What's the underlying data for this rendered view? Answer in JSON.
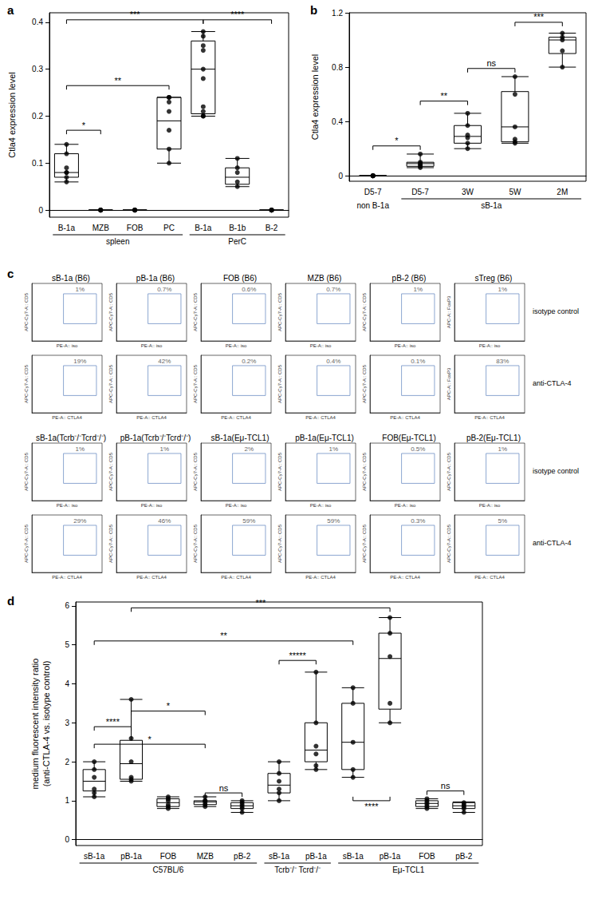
{
  "chart_data": [
    {
      "type": "boxplot",
      "panel_label": "a",
      "y_label": "Ctla4 expression level",
      "color": "#000000",
      "grid": false,
      "categories": [
        "B-1a",
        "MZB",
        "FOB",
        "PC",
        "B-1a",
        "B-1b",
        "B-2"
      ],
      "groups": [
        {
          "label": "spleen",
          "from": 0,
          "to": 3
        },
        {
          "label": "PerC",
          "from": 4,
          "to": 6
        }
      ],
      "boxes": [
        [
          0.06,
          0.07,
          0.08,
          0.12,
          0.14
        ],
        [
          0,
          0,
          0,
          0,
          0
        ],
        [
          0,
          0,
          0,
          0,
          0
        ],
        [
          0.1,
          0.13,
          0.19,
          0.24,
          0.24
        ],
        [
          0.2,
          0.205,
          0.3,
          0.36,
          0.38
        ],
        [
          0.05,
          0.055,
          0.07,
          0.09,
          0.11
        ],
        [
          0,
          0,
          0,
          0,
          0
        ]
      ],
      "points": [
        [
          0.06,
          0.07,
          0.08,
          0.08,
          0.09,
          0.12,
          0.14
        ],
        [
          0,
          0,
          0,
          0,
          0
        ],
        [
          0,
          0,
          0,
          0,
          0
        ],
        [
          0.1,
          0.13,
          0.17,
          0.21,
          0.23,
          0.24,
          0.24
        ],
        [
          0.2,
          0.2,
          0.21,
          0.22,
          0.28,
          0.3,
          0.34,
          0.35,
          0.37,
          0.38
        ],
        [
          0.05,
          0.06,
          0.08,
          0.09,
          0.11
        ],
        [
          0,
          0,
          0,
          0,
          0
        ]
      ],
      "brackets": [
        {
          "from": 0,
          "to": 1,
          "y": 0.17,
          "label": "*"
        },
        {
          "from": 0,
          "to": 3,
          "y": 0.265,
          "label": "**"
        },
        {
          "from": 0,
          "to": 4,
          "y": 0.405,
          "label": "***"
        },
        {
          "from": 4,
          "to": 6,
          "y": 0.405,
          "label": "****"
        }
      ],
      "ylim": [
        -0.015,
        0.42
      ],
      "yticks": [
        0,
        0.1,
        0.2,
        0.3,
        0.4
      ]
    },
    {
      "type": "boxplot",
      "panel_label": "b",
      "y_label": "Ctla4 expression level",
      "color": "#000000",
      "grid": false,
      "categories": [
        "D5-7",
        "D5-7",
        "3W",
        "5W",
        "2M"
      ],
      "groups": [
        {
          "label": "non B-1a",
          "from": 0,
          "to": 0
        },
        {
          "label": "sB-1a",
          "from": 1,
          "to": 4
        }
      ],
      "boxes": [
        [
          0,
          0,
          0,
          0,
          0
        ],
        [
          0.06,
          0.07,
          0.09,
          0.1,
          0.16
        ],
        [
          0.2,
          0.24,
          0.29,
          0.37,
          0.46
        ],
        [
          0.24,
          0.25,
          0.36,
          0.62,
          0.73
        ],
        [
          0.8,
          0.9,
          1.0,
          1.02,
          1.05
        ]
      ],
      "points": [
        [
          0,
          0,
          0,
          0,
          0,
          0
        ],
        [
          0.06,
          0.07,
          0.08,
          0.09,
          0.1,
          0.16
        ],
        [
          0.2,
          0.24,
          0.28,
          0.3,
          0.37,
          0.46
        ],
        [
          0.24,
          0.25,
          0.27,
          0.36,
          0.6,
          0.73
        ],
        [
          0.8,
          0.92,
          1.0,
          1.02,
          1.05
        ]
      ],
      "brackets": [
        {
          "from": 0,
          "to": 1,
          "y": 0.22,
          "label": "*"
        },
        {
          "from": 1,
          "to": 2,
          "y": 0.55,
          "label": "**"
        },
        {
          "from": 2,
          "to": 3,
          "y": 0.79,
          "label": "ns"
        },
        {
          "from": 3,
          "to": 4,
          "y": 1.13,
          "label": "***"
        }
      ],
      "ylim": [
        -0.04,
        1.2
      ],
      "yticks": [
        0,
        0.4,
        0.8,
        1.2
      ]
    },
    {
      "type": "flow",
      "panel_label": "c",
      "xlim": [
        0,
        1
      ],
      "ylim": [
        0,
        1
      ],
      "tick_labels": false,
      "gate": [
        0.45,
        0.3,
        0.92,
        0.82
      ],
      "blocks": [
        {
          "titles": [
            "sB-1a (B6)",
            "pB-1a (B6)",
            "FOB (B6)",
            "MZB (B6)",
            "pB-2 (B6)",
            "sTreg (B6)"
          ],
          "y_labels": [
            "APC-Cy7-A:: CD5",
            "APC-Cy7-A:: CD5",
            "APC-Cy7-A:: CD5",
            "APC-Cy7-A:: CD5",
            "APC-Cy7-A:: CD5",
            "APC-A:: FoxP3"
          ],
          "rows": [
            {
              "label": "isotype control",
              "x_label": "PE-A:: iso",
              "values": [
                1,
                0.7,
                0.6,
                0.7,
                1,
                1
              ],
              "value_labels": [
                "1%",
                "0.7%",
                "0.6%",
                "0.7%",
                "1%",
                "1%"
              ]
            },
            {
              "label": "anti-CTLA-4",
              "x_label": "PE-A:: CTLA4",
              "values": [
                19,
                42,
                0.2,
                0.4,
                0.1,
                83
              ],
              "value_labels": [
                "19%",
                "42%",
                "0.2%",
                "0.4%",
                "0.1%",
                "83%"
              ]
            }
          ]
        },
        {
          "titles": [
            "sB-1a(Tcrb⁻/⁻Tcrd⁻/⁻)",
            "pB-1a(Tcrb⁻/⁻Tcrd⁻/⁻)",
            "sB-1a(Eμ-TCL1)",
            "pB-1a(Eμ-TCL1)",
            "FOB(Eμ-TCL1)",
            "pB-2(Eμ-TCL1)"
          ],
          "y_labels": [
            "APC-Cy7-A:: CD5",
            "APC-Cy7-A:: CD5",
            "APC-Cy7-A:: CD5",
            "APC-Cy7-A:: CD5",
            "APC-Cy7-A:: CD5",
            "APC-Cy7-A:: CD5"
          ],
          "rows": [
            {
              "label": "isotype control",
              "x_label": "PE-A:: iso",
              "values": [
                1,
                1,
                2,
                1,
                0.5,
                1
              ],
              "value_labels": [
                "1%",
                "1%",
                "2%",
                "1%",
                "0.5%",
                "1%"
              ]
            },
            {
              "label": "anti-CTLA-4",
              "x_label": "PE-A:: CTLA4",
              "values": [
                29,
                46,
                59,
                59,
                0.3,
                5
              ],
              "value_labels": [
                "29%",
                "46%",
                "59%",
                "59%",
                "0.3%",
                "5%"
              ]
            }
          ]
        }
      ]
    },
    {
      "type": "boxplot",
      "panel_label": "d",
      "y_label": "medium fluorescent intensity ratio\n(anti-CTLA-4 vs. isotype control)",
      "color": "#000000",
      "grid": false,
      "categories": [
        "sB-1a",
        "pB-1a",
        "FOB",
        "MZB",
        "pB-2",
        "sB-1a",
        "pB-1a",
        "sB-1a",
        "pB-1a",
        "FOB",
        "pB-2"
      ],
      "groups": [
        {
          "label": "C57BL/6",
          "from": 0,
          "to": 4
        },
        {
          "label": "Tcrb⁻/⁻ Tcrd⁻/⁻",
          "from": 5,
          "to": 6
        },
        {
          "label": "Eμ-TCL1",
          "from": 7,
          "to": 10
        }
      ],
      "boxes": [
        [
          1.1,
          1.25,
          1.5,
          1.8,
          2.0
        ],
        [
          1.5,
          1.55,
          1.95,
          2.55,
          3.6
        ],
        [
          0.8,
          0.85,
          0.95,
          1.05,
          1.1
        ],
        [
          0.85,
          0.9,
          0.97,
          1.0,
          1.1
        ],
        [
          0.7,
          0.8,
          0.87,
          0.95,
          1.0
        ],
        [
          1.0,
          1.2,
          1.4,
          1.7,
          2.0
        ],
        [
          1.8,
          2.0,
          2.3,
          3.0,
          4.3
        ],
        [
          1.6,
          1.8,
          2.5,
          3.5,
          3.9
        ],
        [
          3.0,
          3.35,
          4.65,
          5.3,
          5.7
        ],
        [
          0.8,
          0.85,
          0.93,
          1.0,
          1.05
        ],
        [
          0.7,
          0.8,
          0.87,
          0.95,
          0.97
        ]
      ],
      "points": [
        [
          1.1,
          1.2,
          1.3,
          1.6,
          1.8,
          2.0
        ],
        [
          1.5,
          1.55,
          1.6,
          2.0,
          2.6,
          3.6
        ],
        [
          0.8,
          0.85,
          0.9,
          1.0,
          1.05,
          1.1
        ],
        [
          0.85,
          0.9,
          0.95,
          1.0,
          1.0,
          1.1
        ],
        [
          0.7,
          0.8,
          0.85,
          0.9,
          0.95,
          1.0
        ],
        [
          1.0,
          1.2,
          1.3,
          1.5,
          1.7,
          2.0
        ],
        [
          1.8,
          1.9,
          2.2,
          2.4,
          3.0,
          4.3
        ],
        [
          1.6,
          1.8,
          2.5,
          3.5,
          3.9
        ],
        [
          3.0,
          3.5,
          4.7,
          5.3,
          5.7
        ],
        [
          0.8,
          0.85,
          0.9,
          0.95,
          1.0,
          1.05
        ],
        [
          0.7,
          0.8,
          0.85,
          0.9,
          0.95
        ]
      ],
      "brackets": [
        {
          "from": 0,
          "to": 1,
          "y": 2.9,
          "label": "****"
        },
        {
          "from": 0,
          "to": 3,
          "y": 2.45,
          "label": "*"
        },
        {
          "from": 1,
          "to": 3,
          "y": 3.3,
          "label": "*"
        },
        {
          "from": 3,
          "to": 4,
          "y": 1.2,
          "label": "ns"
        },
        {
          "from": 0,
          "to": 7,
          "y": 5.1,
          "label": "**"
        },
        {
          "from": 1,
          "to": 8,
          "y": 5.95,
          "label": "***"
        },
        {
          "from": 5,
          "to": 6,
          "y": 4.6,
          "label": "*****"
        },
        {
          "from": 7,
          "to": 8,
          "y": 1.0,
          "label": "****",
          "side": "below"
        },
        {
          "from": 9,
          "to": 10,
          "y": 1.25,
          "label": "ns"
        }
      ],
      "ylim": [
        -0.15,
        6.1
      ],
      "yticks": [
        0,
        1,
        2,
        3,
        4,
        5,
        6
      ]
    }
  ]
}
